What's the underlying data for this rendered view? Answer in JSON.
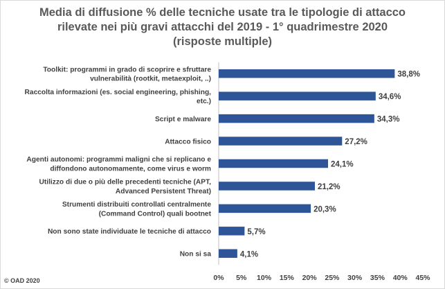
{
  "footer": "© OAD 2020",
  "chart_data": {
    "type": "bar",
    "orientation": "horizontal",
    "title_lines": [
      "Media di diffusione % delle tecniche usate tra le tipologie di attacco",
      "rilevate nei più gravi attacchi del 2019 - 1° quadrimestre 2020",
      "(risposte multiple)"
    ],
    "categories": [
      [
        "Toolkit: programmi in grado di scoprire e sfruttare",
        "vulnerabilità (rootkit, metaexploit, ..)"
      ],
      [
        "Raccolta informazioni (es. social engineering, phishing,",
        "etc.)"
      ],
      [
        "Script e malware"
      ],
      [
        "Attacco fisico"
      ],
      [
        "Agenti autonomi: programmi maligni che si replicano e",
        "diffondono autonomamente, come virus e worm"
      ],
      [
        "Utilizzo di due o più delle precedenti tecniche (APT,",
        "Advanced Persistent Threat)"
      ],
      [
        "Strumenti distribuiti controllati centralmente",
        "(Command Control) quali bootnet"
      ],
      [
        "Non sono state individuate le tecniche di attacco"
      ],
      [
        "Non si sa"
      ]
    ],
    "values": [
      38.8,
      34.6,
      34.3,
      27.2,
      24.1,
      21.2,
      20.3,
      5.7,
      4.1
    ],
    "data_labels": [
      "38,8%",
      "34,6%",
      "34,3%",
      "27,2%",
      "24,1%",
      "21,2%",
      "20,3%",
      "5,7%",
      "4,1%"
    ],
    "xlim": [
      0,
      45
    ],
    "xticks": [
      "0%",
      "5%",
      "10%",
      "15%",
      "20%",
      "25%",
      "30%",
      "35%",
      "40%",
      "45%"
    ],
    "bar_color": "#2e5597",
    "grid": false
  }
}
